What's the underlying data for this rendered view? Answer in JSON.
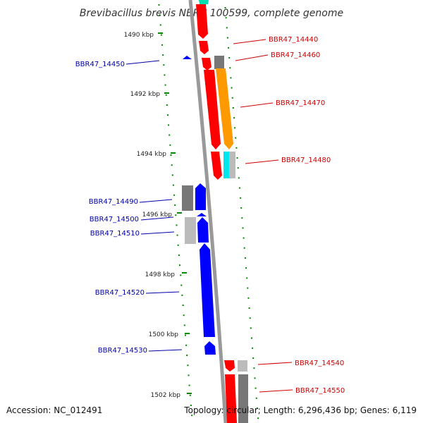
{
  "title": "Brevibacillus brevis NBRC 100599, complete genome",
  "footer": {
    "accession": "Accession: NC_012491",
    "summary": "Topology: circular; Length: 6,296,436 bp; Genes: 6,119"
  },
  "ruler_labels": [
    "1490 kbp",
    "1492 kbp",
    "1494 kbp",
    "1496 kbp",
    "1498 kbp",
    "1500 kbp",
    "1502 kbp"
  ],
  "colors": {
    "forward_label": "#cc0000",
    "reverse_label": "#0000aa",
    "backbone": "#999999",
    "tick": "#008800",
    "red": "#ff0000",
    "blue": "#0000ff",
    "orange": "#ff9900",
    "cyan": "#00e5ee",
    "teal": "#00e0b0",
    "dark_gray": "#777777",
    "light_gray": "#bbbbbb"
  },
  "genes": [
    {
      "locus": "BBR47_14440",
      "strand": "forward"
    },
    {
      "locus": "BBR47_14450",
      "strand": "reverse"
    },
    {
      "locus": "BBR47_14460",
      "strand": "forward"
    },
    {
      "locus": "BBR47_14470",
      "strand": "forward"
    },
    {
      "locus": "BBR47_14480",
      "strand": "forward"
    },
    {
      "locus": "BBR47_14490",
      "strand": "reverse"
    },
    {
      "locus": "BBR47_14500",
      "strand": "reverse"
    },
    {
      "locus": "BBR47_14510",
      "strand": "reverse"
    },
    {
      "locus": "BBR47_14520",
      "strand": "reverse"
    },
    {
      "locus": "BBR47_14530",
      "strand": "reverse"
    },
    {
      "locus": "BBR47_14540",
      "strand": "forward"
    },
    {
      "locus": "BBR47_14550",
      "strand": "forward"
    }
  ]
}
